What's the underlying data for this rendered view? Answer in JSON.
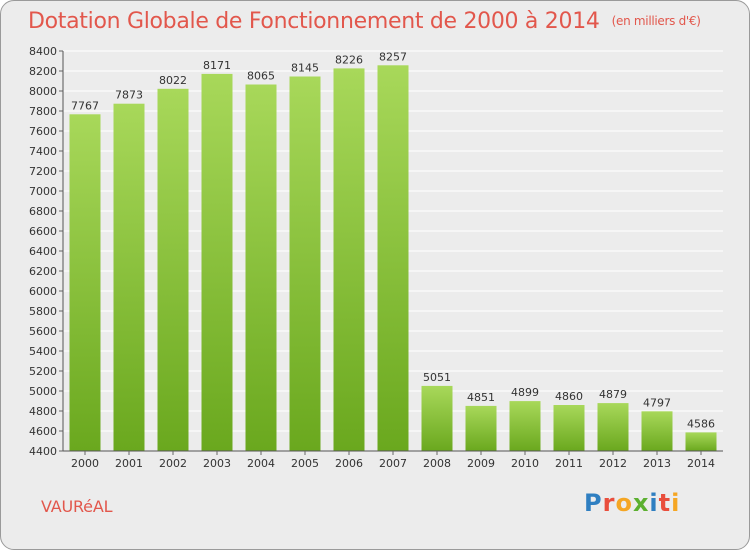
{
  "title": "Dotation Globale de Fonctionnement de 2000 à 2014",
  "subtitle": "(en milliers d'€)",
  "commune": "VAURéAL",
  "logo": {
    "text": "Proxiti",
    "letters": [
      {
        "char": "P",
        "color": "#2f7fc1"
      },
      {
        "char": "r",
        "color": "#e94e3c"
      },
      {
        "char": "o",
        "color": "#f5a623"
      },
      {
        "char": "x",
        "color": "#5cb030"
      },
      {
        "char": "i",
        "color": "#2f7fc1"
      },
      {
        "char": "t",
        "color": "#e94e3c"
      },
      {
        "char": "i",
        "color": "#f5a623"
      }
    ]
  },
  "colors": {
    "accent": "#e2574c",
    "bar_top": "#a8d85a",
    "bar_bottom": "#6aa81e",
    "background": "#ececec",
    "grid": "#ffffff",
    "text": "#333333"
  },
  "chart_data": {
    "type": "bar",
    "title": "Dotation Globale de Fonctionnement de 2000 à 2014",
    "subtitle": "(en milliers d'€)",
    "xlabel": "",
    "ylabel": "",
    "categories": [
      "2000",
      "2001",
      "2002",
      "2003",
      "2004",
      "2005",
      "2006",
      "2007",
      "2008",
      "2009",
      "2010",
      "2011",
      "2012",
      "2013",
      "2014"
    ],
    "values": [
      7767,
      7873,
      8022,
      8171,
      8065,
      8145,
      8226,
      8257,
      5051,
      4851,
      4899,
      4860,
      4879,
      4797,
      4586
    ],
    "ylim": [
      4400,
      8400
    ],
    "yticks": [
      4400,
      4600,
      4800,
      5000,
      5200,
      5400,
      5600,
      5800,
      6000,
      6200,
      6400,
      6600,
      6800,
      7000,
      7200,
      7400,
      7600,
      7800,
      8000,
      8200,
      8400
    ],
    "grid": true,
    "legend": "none"
  }
}
